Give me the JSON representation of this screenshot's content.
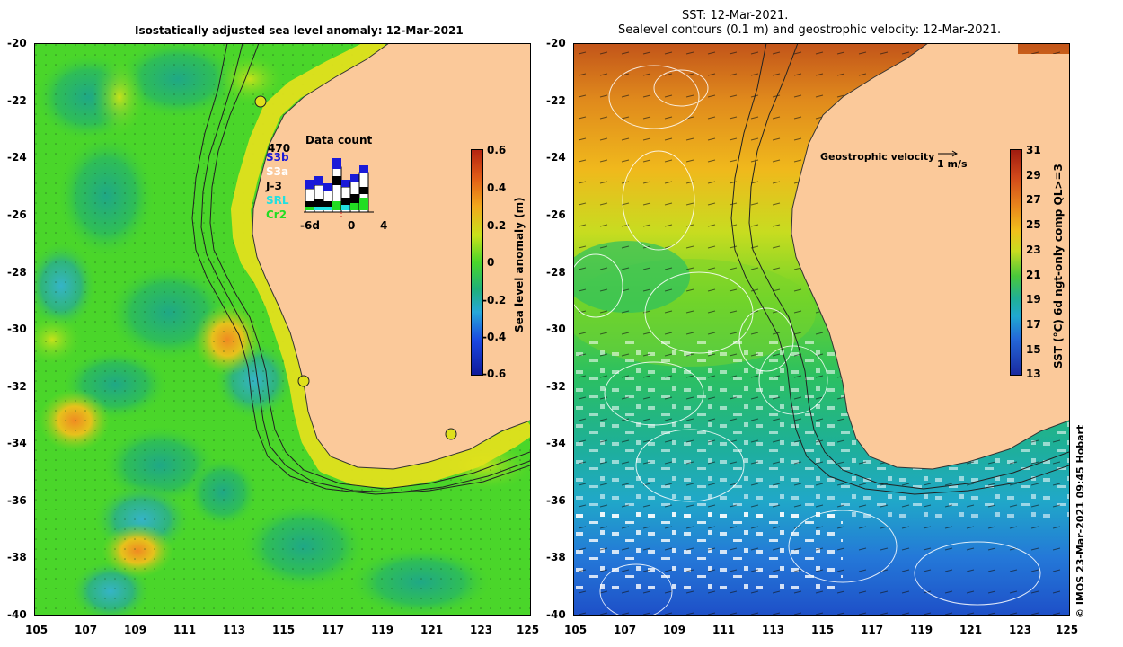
{
  "left_panel": {
    "title": "Isostatically adjusted sea level anomaly: 12-Mar-2021",
    "x_ticks": [
      "105",
      "107",
      "109",
      "111",
      "113",
      "115",
      "117",
      "119",
      "121",
      "123",
      "125"
    ],
    "y_ticks": [
      "-20",
      "-22",
      "-24",
      "-26",
      "-28",
      "-30",
      "-32",
      "-34",
      "-36",
      "-38",
      "-40"
    ],
    "colorbar": {
      "title": "Sea level anomaly (m)",
      "ticks": [
        "0.6",
        "0.4",
        "0.2",
        "0",
        "-0.2",
        "-0.4",
        "-0.6"
      ]
    },
    "data_count": {
      "title": "Data count",
      "max_label": "470",
      "satellites": [
        {
          "name": "S3b",
          "color": "#1a1ad8"
        },
        {
          "name": "S3a",
          "color": "#ffffff"
        },
        {
          "name": "J-3",
          "color": "#000000"
        },
        {
          "name": "SRL",
          "color": "#22e0e0"
        },
        {
          "name": "Cr2",
          "color": "#22dd22"
        }
      ],
      "x_labels": [
        "-6d",
        "0",
        "4"
      ]
    }
  },
  "right_panel": {
    "title_line1": "SST: 12-Mar-2021.",
    "title_line2": "Sealevel contours (0.1 m) and geostrophic velocity: 12-Mar-2021.",
    "x_ticks": [
      "105",
      "107",
      "109",
      "111",
      "113",
      "115",
      "117",
      "119",
      "121",
      "123",
      "125"
    ],
    "y_ticks": [
      "-20",
      "-22",
      "-24",
      "-26",
      "-28",
      "-30",
      "-32",
      "-34",
      "-36",
      "-38",
      "-40"
    ],
    "velocity_legend": "Geostrophic velocity",
    "velocity_scale": "1 m/s",
    "colorbar": {
      "title": "SST (°C) 6d ngt-only comp QL>=3",
      "ticks": [
        "31",
        "29",
        "27",
        "25",
        "23",
        "21",
        "19",
        "17",
        "15",
        "13"
      ]
    },
    "credit": "© IMOS 23-Mar-2021 09:45 Hobart"
  },
  "colors": {
    "land": "#fbc99a",
    "sla_base": "#4ad62a",
    "sst_warm": "#d2661e",
    "sst_cool": "#1e78d8"
  }
}
